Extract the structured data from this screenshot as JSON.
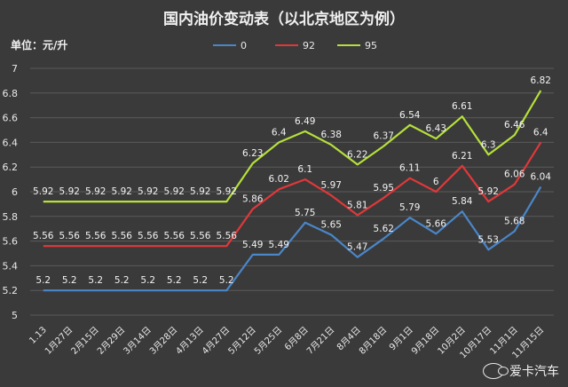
{
  "chart_data": {
    "type": "line",
    "title": "国内油价变动表（以北京地区为例）",
    "unit_label": "单位：元/升",
    "categories": [
      "1.13",
      "1月27日",
      "2月15日",
      "2月29日",
      "3月14日",
      "3月28日",
      "4月13日",
      "4月27日",
      "5月12日",
      "5月25日",
      "6月8日",
      "7月21日",
      "8月4日",
      "8月18日",
      "9月1日",
      "9月18日",
      "10月2日",
      "10月17日",
      "11月1日",
      "11月15日"
    ],
    "ylim": [
      5,
      7
    ],
    "yticks": [
      5,
      5.2,
      5.4,
      5.6,
      5.8,
      6,
      6.2,
      6.4,
      6.6,
      6.8,
      7
    ],
    "ytick_labels": [
      "5",
      "5.2",
      "5.4",
      "5.6",
      "5.8",
      "6",
      "6.2",
      "6.4",
      "6.6",
      "6.8",
      "7"
    ],
    "grid": true,
    "legend_position": "top-center",
    "series": [
      {
        "name": "0",
        "color": "#4a86c8",
        "values": [
          5.2,
          5.2,
          5.2,
          5.2,
          5.2,
          5.2,
          5.2,
          5.2,
          5.49,
          5.49,
          5.75,
          5.65,
          5.47,
          5.62,
          5.79,
          5.66,
          5.84,
          5.53,
          5.68,
          6.04
        ]
      },
      {
        "name": "92",
        "color": "#e0383a",
        "values": [
          5.56,
          5.56,
          5.56,
          5.56,
          5.56,
          5.56,
          5.56,
          5.56,
          5.86,
          6.02,
          6.1,
          5.97,
          5.81,
          5.95,
          6.11,
          6,
          6.21,
          5.92,
          6.06,
          6.4
        ]
      },
      {
        "name": "95",
        "color": "#b5e03a",
        "values": [
          5.92,
          5.92,
          5.92,
          5.92,
          5.92,
          5.92,
          5.92,
          5.92,
          6.23,
          6.4,
          6.49,
          6.38,
          6.22,
          6.37,
          6.54,
          6.43,
          6.61,
          6.3,
          6.46,
          6.82
        ]
      }
    ]
  },
  "watermark": {
    "text": "爱卡汽车",
    "icon": "wechat-icon"
  }
}
